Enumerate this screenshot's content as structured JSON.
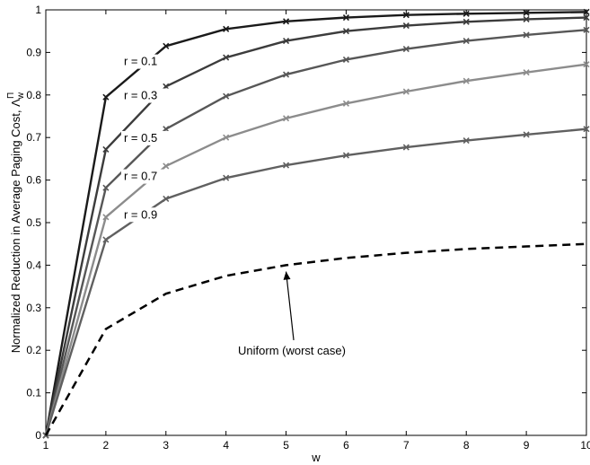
{
  "chart_data": {
    "type": "line",
    "xlabel": "w",
    "ylabel": "Normalized Reduction in Average Paging Cost, Λ",
    "ylabel_sub": "w",
    "ylabel_sup": "Π",
    "xlim": [
      1,
      10
    ],
    "ylim": [
      0,
      1
    ],
    "x": [
      1,
      2,
      3,
      4,
      5,
      6,
      7,
      8,
      9,
      10
    ],
    "xticks": [
      "1",
      "2",
      "3",
      "4",
      "5",
      "6",
      "7",
      "8",
      "9",
      "10"
    ],
    "yticks": [
      "0",
      "0.1",
      "0.2",
      "0.3",
      "0.4",
      "0.5",
      "0.6",
      "0.7",
      "0.8",
      "0.9",
      "1"
    ],
    "grid": false,
    "series": [
      {
        "name": "r = 0.1",
        "color": "#1a1a1a",
        "values": [
          0,
          0.795,
          0.915,
          0.955,
          0.973,
          0.982,
          0.988,
          0.991,
          0.993,
          0.995
        ]
      },
      {
        "name": "r = 0.3",
        "color": "#3c3c3c",
        "values": [
          0,
          0.672,
          0.82,
          0.888,
          0.927,
          0.95,
          0.963,
          0.972,
          0.978,
          0.982
        ]
      },
      {
        "name": "r = 0.5",
        "color": "#575757",
        "values": [
          0,
          0.582,
          0.72,
          0.797,
          0.848,
          0.883,
          0.908,
          0.927,
          0.941,
          0.953
        ]
      },
      {
        "name": "r = 0.7",
        "color": "#8c8c8c",
        "values": [
          0,
          0.513,
          0.633,
          0.7,
          0.745,
          0.78,
          0.808,
          0.833,
          0.853,
          0.872
        ]
      },
      {
        "name": "r = 0.9",
        "color": "#606060",
        "values": [
          0,
          0.46,
          0.556,
          0.605,
          0.635,
          0.658,
          0.677,
          0.693,
          0.707,
          0.72
        ]
      },
      {
        "name": "Uniform (worst case)",
        "color": "#000000",
        "dashed": true,
        "values": [
          0,
          0.25,
          0.333,
          0.375,
          0.4,
          0.417,
          0.429,
          0.438,
          0.444,
          0.45
        ]
      }
    ],
    "annotations": [
      {
        "text": "r = 0.1",
        "x": 2.3,
        "y": 0.87
      },
      {
        "text": "r = 0.3",
        "x": 2.3,
        "y": 0.79
      },
      {
        "text": "r = 0.5",
        "x": 2.3,
        "y": 0.69
      },
      {
        "text": "r = 0.7",
        "x": 2.3,
        "y": 0.6
      },
      {
        "text": "r = 0.9",
        "x": 2.3,
        "y": 0.51
      },
      {
        "text": "Uniform (worst case)",
        "x": 4.2,
        "y": 0.19,
        "arrow_to": [
          5.0,
          0.385
        ]
      }
    ]
  }
}
